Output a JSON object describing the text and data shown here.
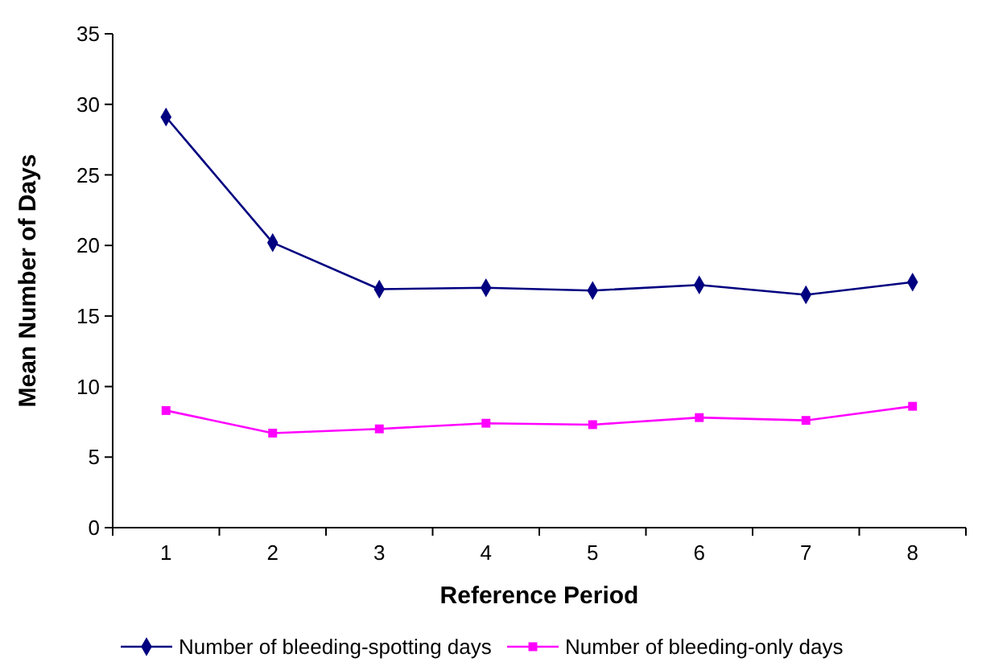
{
  "chart_data": {
    "type": "line",
    "xlabel": "Reference Period",
    "ylabel": "Mean Number of Days",
    "categories": [
      "1",
      "2",
      "3",
      "4",
      "5",
      "6",
      "7",
      "8"
    ],
    "series": [
      {
        "name": "Number of bleeding-spotting days",
        "color": "#000080",
        "marker": "diamond",
        "values": [
          29.1,
          20.2,
          16.9,
          17.0,
          16.8,
          17.2,
          16.5,
          17.4
        ]
      },
      {
        "name": "Number of bleeding-only days",
        "color": "#ff00ff",
        "marker": "square",
        "values": [
          8.3,
          6.7,
          7.0,
          7.4,
          7.3,
          7.8,
          7.6,
          8.6
        ]
      }
    ],
    "ylim": [
      0,
      35
    ],
    "yticks": [
      0,
      5,
      10,
      15,
      20,
      25,
      30,
      35
    ],
    "grid": false,
    "legend": "bottom",
    "line_style": "solid"
  }
}
